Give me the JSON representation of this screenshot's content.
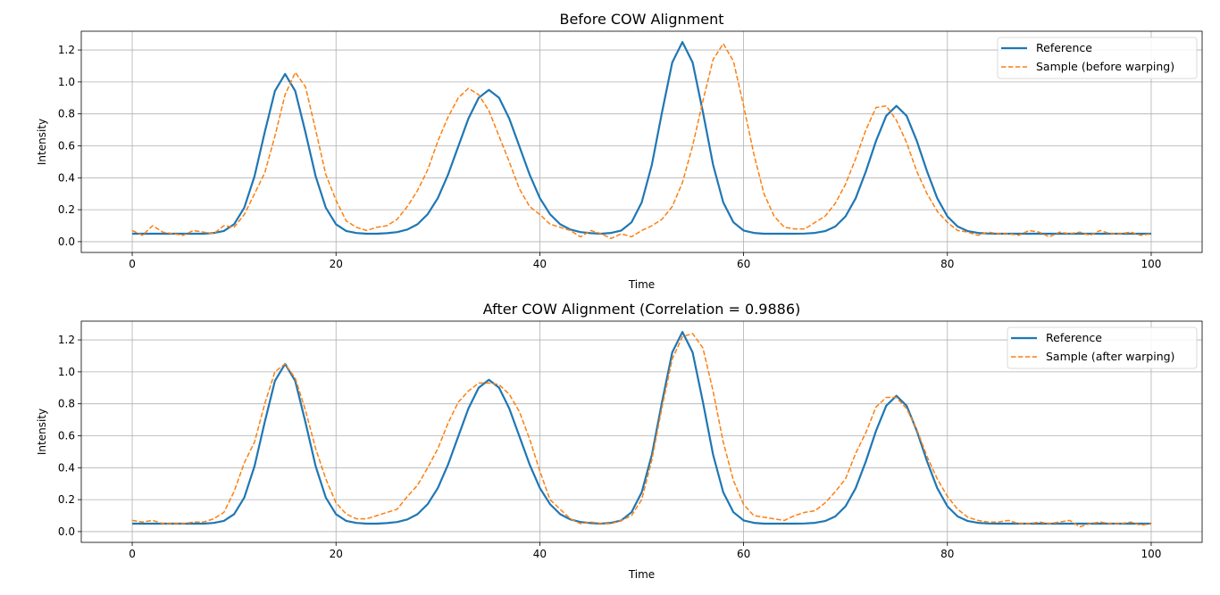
{
  "chart_data": [
    {
      "type": "line",
      "title": "Before COW Alignment",
      "xlabel": "Time",
      "ylabel": "Intensity",
      "xlim": [
        -5,
        105
      ],
      "ylim": [
        -0.0675,
        1.3175
      ],
      "xticks": [
        "0",
        "20",
        "40",
        "60",
        "80",
        "100"
      ],
      "yticks": [
        "0.0",
        "0.2",
        "0.4",
        "0.6",
        "0.8",
        "1.0",
        "1.2"
      ],
      "grid": true,
      "legend": "top-right",
      "x_start": 0,
      "x_step": 1,
      "series": [
        {
          "name": "Reference",
          "color": "#1f77b4",
          "style": "solid",
          "ref": "reference"
        },
        {
          "name": "Sample (before warping)",
          "color": "#ff7f0e",
          "style": "dashed",
          "values": [
            0.07,
            0.04,
            0.1,
            0.06,
            0.05,
            0.04,
            0.07,
            0.06,
            0.05,
            0.1,
            0.09,
            0.17,
            0.3,
            0.43,
            0.66,
            0.92,
            1.06,
            0.97,
            0.7,
            0.42,
            0.26,
            0.13,
            0.09,
            0.07,
            0.09,
            0.1,
            0.14,
            0.22,
            0.32,
            0.45,
            0.63,
            0.78,
            0.9,
            0.96,
            0.92,
            0.82,
            0.66,
            0.5,
            0.33,
            0.22,
            0.17,
            0.11,
            0.09,
            0.07,
            0.03,
            0.07,
            0.05,
            0.02,
            0.05,
            0.03,
            0.07,
            0.1,
            0.14,
            0.22,
            0.37,
            0.6,
            0.88,
            1.14,
            1.24,
            1.13,
            0.85,
            0.55,
            0.3,
            0.16,
            0.09,
            0.08,
            0.08,
            0.12,
            0.16,
            0.24,
            0.36,
            0.52,
            0.7,
            0.84,
            0.85,
            0.76,
            0.62,
            0.44,
            0.3,
            0.19,
            0.12,
            0.07,
            0.06,
            0.04,
            0.06,
            0.05,
            0.05,
            0.04,
            0.07,
            0.06,
            0.03,
            0.06,
            0.05,
            0.06,
            0.04,
            0.07,
            0.05,
            0.05,
            0.06,
            0.04,
            0.05
          ]
        }
      ]
    },
    {
      "type": "line",
      "title": "After COW Alignment (Correlation = 0.9886)",
      "xlabel": "Time",
      "ylabel": "Intensity",
      "xlim": [
        -5,
        105
      ],
      "ylim": [
        -0.0675,
        1.3175
      ],
      "xticks": [
        "0",
        "20",
        "40",
        "60",
        "80",
        "100"
      ],
      "yticks": [
        "0.0",
        "0.2",
        "0.4",
        "0.6",
        "0.8",
        "1.0",
        "1.2"
      ],
      "grid": true,
      "legend": "top-right",
      "x_start": 0,
      "x_step": 1,
      "series": [
        {
          "name": "Reference",
          "color": "#1f77b4",
          "style": "solid",
          "ref": "reference"
        },
        {
          "name": "Sample (after warping)",
          "color": "#ff7f0e",
          "style": "dashed",
          "values": [
            0.07,
            0.06,
            0.07,
            0.05,
            0.05,
            0.05,
            0.06,
            0.06,
            0.08,
            0.12,
            0.25,
            0.43,
            0.56,
            0.8,
            1.0,
            1.05,
            0.96,
            0.76,
            0.52,
            0.33,
            0.18,
            0.11,
            0.08,
            0.08,
            0.1,
            0.12,
            0.14,
            0.22,
            0.29,
            0.4,
            0.52,
            0.68,
            0.81,
            0.88,
            0.93,
            0.93,
            0.92,
            0.86,
            0.75,
            0.58,
            0.38,
            0.2,
            0.14,
            0.08,
            0.05,
            0.06,
            0.05,
            0.05,
            0.07,
            0.1,
            0.2,
            0.45,
            0.78,
            1.08,
            1.22,
            1.24,
            1.15,
            0.88,
            0.56,
            0.32,
            0.17,
            0.1,
            0.09,
            0.08,
            0.07,
            0.1,
            0.12,
            0.13,
            0.18,
            0.25,
            0.33,
            0.49,
            0.62,
            0.78,
            0.84,
            0.84,
            0.77,
            0.64,
            0.47,
            0.33,
            0.22,
            0.14,
            0.09,
            0.07,
            0.06,
            0.06,
            0.07,
            0.05,
            0.05,
            0.06,
            0.05,
            0.06,
            0.07,
            0.03,
            0.05,
            0.06,
            0.05,
            0.05,
            0.06,
            0.04,
            0.05
          ]
        }
      ]
    }
  ],
  "reference": [
    0.05,
    0.05,
    0.05,
    0.05,
    0.05,
    0.05,
    0.05,
    0.05,
    0.054,
    0.067,
    0.109,
    0.213,
    0.41,
    0.685,
    0.943,
    1.05,
    0.943,
    0.685,
    0.41,
    0.213,
    0.109,
    0.067,
    0.054,
    0.05,
    0.05,
    0.053,
    0.06,
    0.076,
    0.109,
    0.172,
    0.274,
    0.42,
    0.596,
    0.771,
    0.901,
    0.95,
    0.901,
    0.771,
    0.596,
    0.42,
    0.274,
    0.172,
    0.109,
    0.076,
    0.06,
    0.053,
    0.05,
    0.055,
    0.07,
    0.121,
    0.246,
    0.482,
    0.812,
    1.122,
    1.25,
    1.122,
    0.812,
    0.482,
    0.246,
    0.121,
    0.07,
    0.055,
    0.05,
    0.05,
    0.05,
    0.05,
    0.051,
    0.055,
    0.066,
    0.095,
    0.158,
    0.272,
    0.44,
    0.631,
    0.788,
    0.85,
    0.788,
    0.631,
    0.44,
    0.272,
    0.158,
    0.095,
    0.066,
    0.055,
    0.051,
    0.05,
    0.05,
    0.05,
    0.05,
    0.05,
    0.05,
    0.05,
    0.05,
    0.05,
    0.05,
    0.05,
    0.05,
    0.05,
    0.05,
    0.05,
    0.05
  ]
}
